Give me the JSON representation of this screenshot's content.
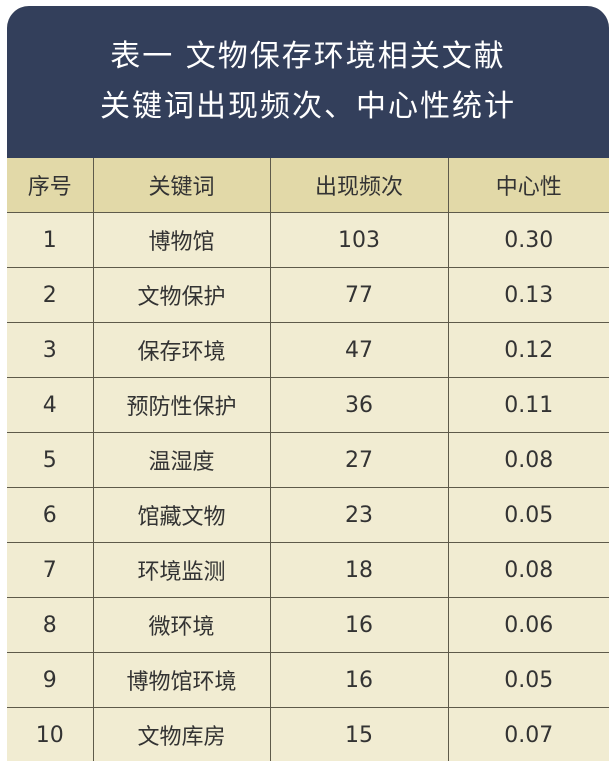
{
  "title": {
    "line1": "表一  文物保存环境相关文献",
    "line2": "关键词出现频次、中心性统计"
  },
  "table": {
    "headers": [
      "序号",
      "关键词",
      "出现频次",
      "中心性"
    ],
    "rows": [
      [
        "1",
        "博物馆",
        "103",
        "0.30"
      ],
      [
        "2",
        "文物保护",
        "77",
        "0.13"
      ],
      [
        "3",
        "保存环境",
        "47",
        "0.12"
      ],
      [
        "4",
        "预防性保护",
        "36",
        "0.11"
      ],
      [
        "5",
        "温湿度",
        "27",
        "0.08"
      ],
      [
        "6",
        "馆藏文物",
        "23",
        "0.05"
      ],
      [
        "7",
        "环境监测",
        "18",
        "0.08"
      ],
      [
        "8",
        "微环境",
        "16",
        "0.06"
      ],
      [
        "9",
        "博物馆环境",
        "16",
        "0.05"
      ],
      [
        "10",
        "文物库房",
        "15",
        "0.07"
      ]
    ]
  },
  "colors": {
    "title_background": "#333f5b",
    "header_background": "#e2d9a8",
    "body_background": "#f1ecd2",
    "border": "#5e5a4a"
  }
}
